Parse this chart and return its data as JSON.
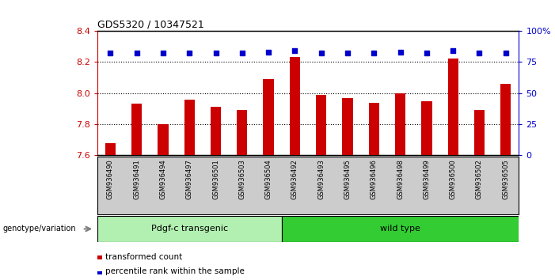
{
  "title": "GDS5320 / 10347521",
  "categories": [
    "GSM936490",
    "GSM936491",
    "GSM936494",
    "GSM936497",
    "GSM936501",
    "GSM936503",
    "GSM936504",
    "GSM936492",
    "GSM936493",
    "GSM936495",
    "GSM936496",
    "GSM936498",
    "GSM936499",
    "GSM936500",
    "GSM936502",
    "GSM936505"
  ],
  "bar_values": [
    7.68,
    7.93,
    7.8,
    7.96,
    7.91,
    7.89,
    8.09,
    8.23,
    7.99,
    7.97,
    7.94,
    8.0,
    7.95,
    8.22,
    7.89,
    8.06
  ],
  "dot_values": [
    82,
    82,
    82,
    82,
    82,
    82,
    83,
    84,
    82,
    82,
    82,
    83,
    82,
    84,
    82,
    82
  ],
  "ylim_left": [
    7.6,
    8.4
  ],
  "ylim_right": [
    0,
    100
  ],
  "yticks_left": [
    7.6,
    7.8,
    8.0,
    8.2,
    8.4
  ],
  "yticks_right": [
    0,
    25,
    50,
    75,
    100
  ],
  "ytick_labels_right": [
    "0",
    "25",
    "50",
    "75",
    "100%"
  ],
  "bar_color": "#cc0000",
  "dot_color": "#0000cc",
  "group1_label": "Pdgf-c transgenic",
  "group2_label": "wild type",
  "group1_indices": [
    0,
    1,
    2,
    3,
    4,
    5,
    6
  ],
  "group2_indices": [
    7,
    8,
    9,
    10,
    11,
    12,
    13,
    14,
    15
  ],
  "group1_color": "#b2f0b2",
  "group2_color": "#33cc33",
  "genotype_label": "genotype/variation",
  "legend_bar_label": "transformed count",
  "legend_dot_label": "percentile rank within the sample",
  "bg_color": "#ffffff",
  "plot_bg_color": "#ffffff",
  "tick_label_color_left": "#cc0000",
  "tick_label_color_right": "#0000cc",
  "grid_color": "#000000",
  "xlabel_area_color": "#cccccc",
  "bar_width": 0.4
}
